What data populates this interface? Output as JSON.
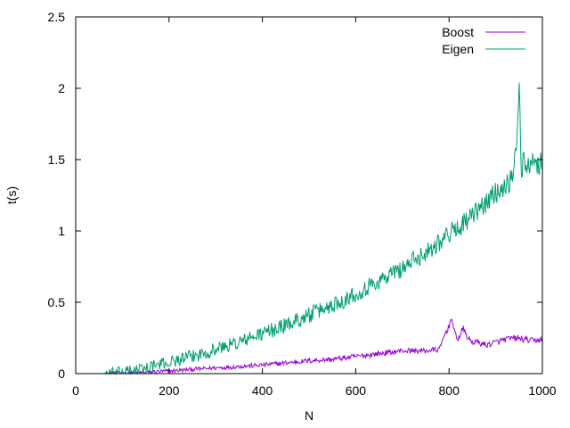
{
  "chart_data": {
    "type": "line",
    "title": "",
    "xlabel": "N",
    "ylabel": "t(s)",
    "xlim": [
      0,
      1000
    ],
    "ylim": [
      0,
      2.5
    ],
    "xticks": [
      0,
      200,
      400,
      600,
      800,
      1000
    ],
    "xtick_labels": [
      "0",
      "200",
      "400",
      "600",
      "800",
      "1000"
    ],
    "yticks": [
      0,
      0.5,
      1,
      1.5,
      2,
      2.5
    ],
    "ytick_labels": [
      "0",
      "0.5",
      "1",
      "1.5",
      "2",
      "2.5"
    ],
    "grid": false,
    "legend": {
      "position": "top-right"
    },
    "series": [
      {
        "name": "Boost",
        "color": "#9400d3",
        "x": [
          60,
          100,
          150,
          200,
          250,
          300,
          350,
          400,
          450,
          500,
          550,
          600,
          650,
          700,
          750,
          780,
          790,
          800,
          805,
          810,
          820,
          830,
          840,
          850,
          860,
          880,
          900,
          920,
          940,
          960,
          980,
          1000
        ],
        "y": [
          0.0,
          0.005,
          0.01,
          0.018,
          0.03,
          0.04,
          0.05,
          0.06,
          0.075,
          0.09,
          0.1,
          0.12,
          0.14,
          0.16,
          0.16,
          0.17,
          0.27,
          0.33,
          0.4,
          0.3,
          0.24,
          0.32,
          0.25,
          0.22,
          0.22,
          0.2,
          0.22,
          0.24,
          0.25,
          0.24,
          0.23,
          0.24
        ]
      },
      {
        "name": "Eigen",
        "color": "#009e73",
        "x": [
          60,
          100,
          150,
          200,
          250,
          300,
          350,
          400,
          450,
          500,
          550,
          600,
          650,
          700,
          750,
          800,
          850,
          900,
          930,
          940,
          945,
          950,
          955,
          960,
          970,
          980,
          990,
          1000
        ],
        "y": [
          0.0,
          0.01,
          0.04,
          0.08,
          0.12,
          0.17,
          0.22,
          0.28,
          0.34,
          0.41,
          0.48,
          0.56,
          0.65,
          0.74,
          0.85,
          0.98,
          1.1,
          1.27,
          1.35,
          1.45,
          1.6,
          2.08,
          1.4,
          1.5,
          1.45,
          1.55,
          1.45,
          1.52
        ]
      }
    ]
  }
}
